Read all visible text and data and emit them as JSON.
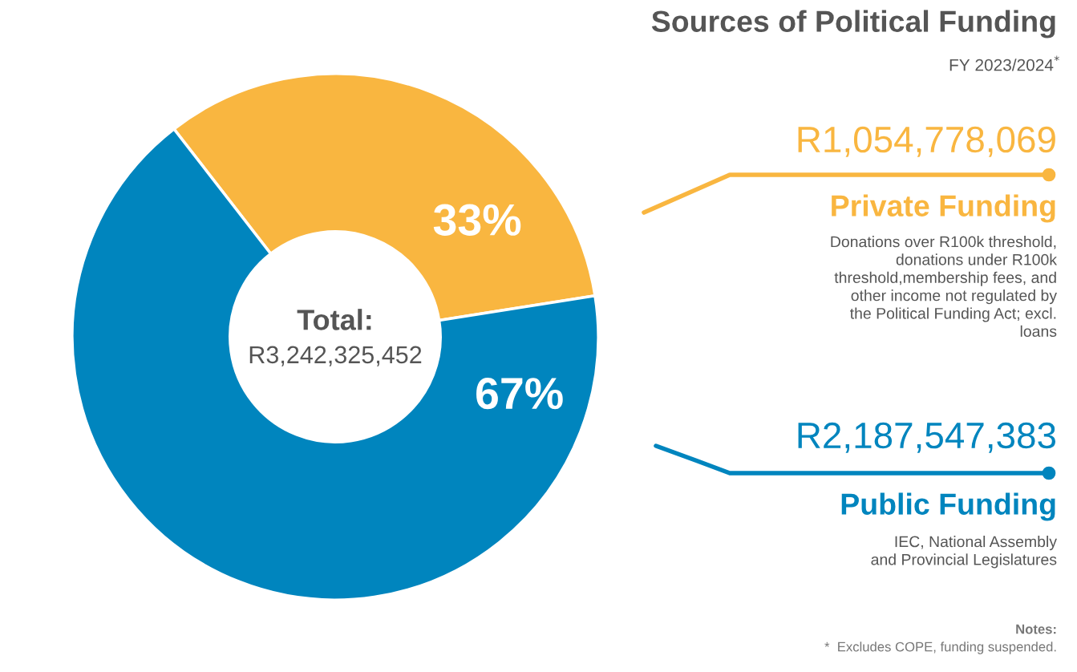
{
  "chart_data": {
    "type": "donut",
    "title": "Sources of Political Funding",
    "subtitle": "FY 2023/2024$^{*}$",
    "categories": [
      "Private Funding",
      "Public Funding"
    ],
    "values": [
      33,
      67
    ],
    "colors": [
      "#f9b640",
      "#0085be"
    ],
    "value_labels": [
      "33%",
      "67%"
    ],
    "annotations": [
      "Total:",
      "R3,242,325,452",
      "R1,054,778,069",
      "Donations over R100k threshold,\ndonations under R100k\nthreshold,membership fees, and\nother income not regulated by\nthe Political Funding Act; excl.\nloans",
      "R2,187,547,383",
      "IEC, National Assembly\nand Provincial Legislatures",
      "Notes:",
      "*  Excludes COPE, funding suspended."
    ],
    "legend": "right"
  }
}
